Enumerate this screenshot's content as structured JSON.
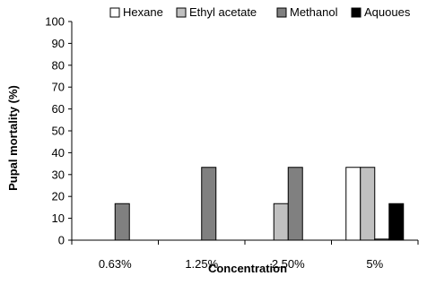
{
  "chart_data": {
    "type": "bar",
    "title": "",
    "xlabel": "Concentration",
    "ylabel": "Pupal mortality (%)",
    "ylim": [
      0,
      100
    ],
    "yticks": [
      0,
      10,
      20,
      30,
      40,
      50,
      60,
      70,
      80,
      90,
      100
    ],
    "categories": [
      "0.63%",
      "1.25%",
      "2.50%",
      "5%"
    ],
    "series": [
      {
        "name": "Hexane",
        "color": "#ffffff",
        "values": [
          0,
          0,
          0,
          33.3
        ]
      },
      {
        "name": "Ethyl acetate",
        "color": "#c0c0c0",
        "values": [
          0,
          0,
          16.7,
          33.3
        ]
      },
      {
        "name": "Methanol",
        "color": "#808080",
        "values": [
          16.7,
          33.3,
          33.3,
          0.5
        ]
      },
      {
        "name": "Aquoues",
        "color": "#000000",
        "values": [
          0,
          0,
          0,
          16.7
        ]
      }
    ],
    "legend_position": "top-right",
    "grid": false
  }
}
